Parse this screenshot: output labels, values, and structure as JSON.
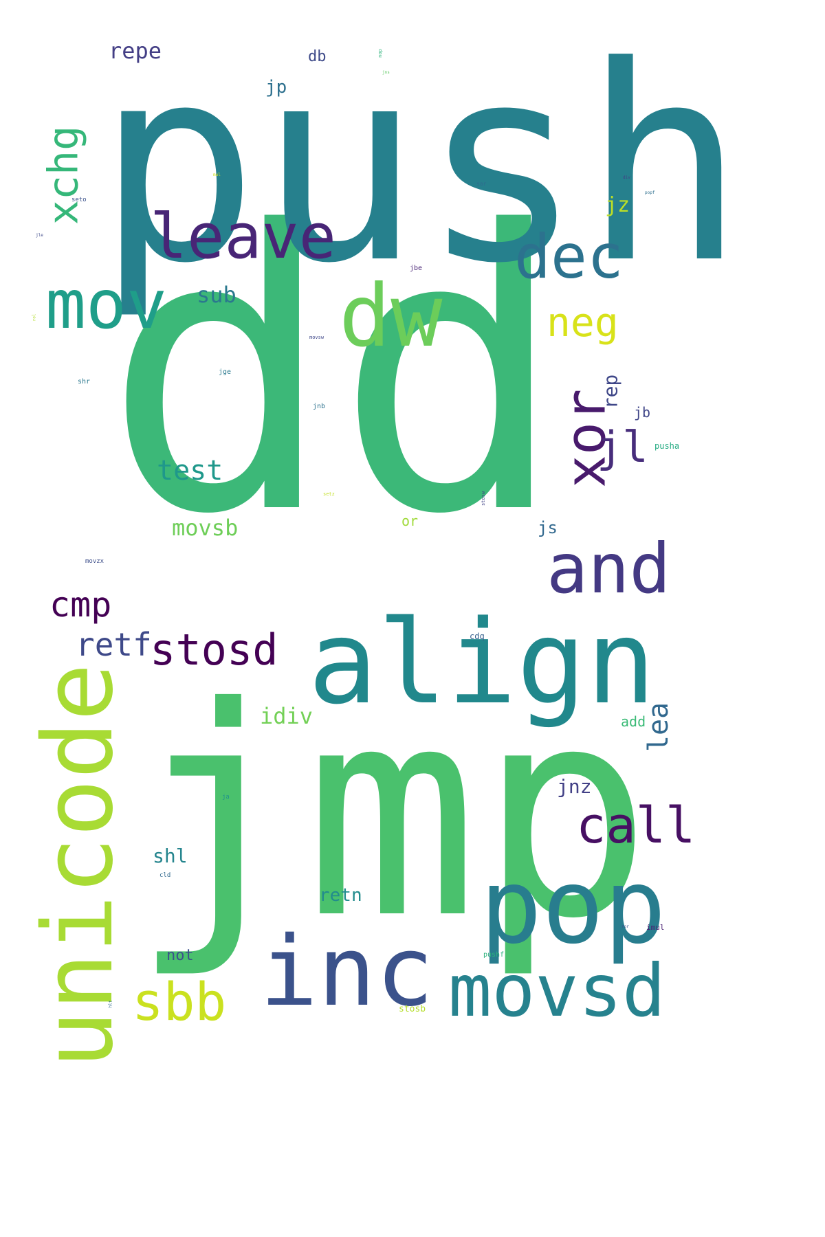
{
  "words": [
    {
      "text": "dd",
      "color": "#3cb878",
      "weight": 1.0,
      "orientation": "horizontal"
    },
    {
      "text": "push",
      "color": "#26808d",
      "weight": 0.62,
      "orientation": "horizontal"
    },
    {
      "text": "jmp",
      "color": "#4ac16d",
      "weight": 0.55,
      "orientation": "horizontal"
    },
    {
      "text": "align",
      "color": "#21888c",
      "weight": 0.3,
      "orientation": "horizontal"
    },
    {
      "text": "unicode",
      "color": "#a8db34",
      "weight": 0.28,
      "orientation": "vertical"
    },
    {
      "text": "pop",
      "color": "#287d8e",
      "weight": 0.25,
      "orientation": "horizontal"
    },
    {
      "text": "inc",
      "color": "#3b528b",
      "weight": 0.24,
      "orientation": "horizontal"
    },
    {
      "text": "dw",
      "color": "#6ccd5a",
      "weight": 0.22,
      "orientation": "horizontal"
    },
    {
      "text": "movsd",
      "color": "#26828e",
      "weight": 0.19,
      "orientation": "horizontal"
    },
    {
      "text": "mov",
      "color": "#1f9e89",
      "weight": 0.19,
      "orientation": "horizontal"
    },
    {
      "text": "and",
      "color": "#443983",
      "weight": 0.19,
      "orientation": "horizontal"
    },
    {
      "text": "leave",
      "color": "#482576",
      "weight": 0.16,
      "orientation": "horizontal"
    },
    {
      "text": "dec",
      "color": "#2c728e",
      "weight": 0.15,
      "orientation": "horizontal"
    },
    {
      "text": "xor",
      "color": "#481a6c",
      "weight": 0.14,
      "orientation": "vertical"
    },
    {
      "text": "sbb",
      "color": "#cae11f",
      "weight": 0.13,
      "orientation": "horizontal"
    },
    {
      "text": "call",
      "color": "#471063",
      "weight": 0.12,
      "orientation": "horizontal"
    },
    {
      "text": "stosd",
      "color": "#440154",
      "weight": 0.1,
      "orientation": "horizontal"
    },
    {
      "text": "neg",
      "color": "#d8e219",
      "weight": 0.1,
      "orientation": "horizontal"
    },
    {
      "text": "xchg",
      "color": "#35b779",
      "weight": 0.1,
      "orientation": "vertical"
    },
    {
      "text": "jl",
      "color": "#472d7b",
      "weight": 0.1,
      "orientation": "horizontal"
    },
    {
      "text": "cmp",
      "color": "#440154",
      "weight": 0.08,
      "orientation": "horizontal"
    },
    {
      "text": "retf",
      "color": "#3e4989",
      "weight": 0.07,
      "orientation": "horizontal"
    },
    {
      "text": "test",
      "color": "#1f988b",
      "weight": 0.06,
      "orientation": "horizontal"
    },
    {
      "text": "lea",
      "color": "#31688e",
      "weight": 0.06,
      "orientation": "vertical"
    },
    {
      "text": "movsb",
      "color": "#6ece58",
      "weight": 0.05,
      "orientation": "horizontal"
    },
    {
      "text": "sub",
      "color": "#2a788e",
      "weight": 0.05,
      "orientation": "horizontal"
    },
    {
      "text": "repe",
      "color": "#433e85",
      "weight": 0.045,
      "orientation": "horizontal"
    },
    {
      "text": "idiv",
      "color": "#73d056",
      "weight": 0.045,
      "orientation": "horizontal"
    },
    {
      "text": "shl",
      "color": "#25858e",
      "weight": 0.04,
      "orientation": "horizontal"
    },
    {
      "text": "jz",
      "color": "#bddf26",
      "weight": 0.04,
      "orientation": "horizontal"
    },
    {
      "text": "rep",
      "color": "#3f4788",
      "weight": 0.04,
      "orientation": "vertical"
    },
    {
      "text": "jnz",
      "color": "#424086",
      "weight": 0.04,
      "orientation": "horizontal"
    },
    {
      "text": "retn",
      "color": "#228c8d",
      "weight": 0.035,
      "orientation": "horizontal"
    },
    {
      "text": "jp",
      "color": "#2d708e",
      "weight": 0.035,
      "orientation": "horizontal"
    },
    {
      "text": "js",
      "color": "#31688e",
      "weight": 0.03,
      "orientation": "horizontal"
    },
    {
      "text": "not",
      "color": "#3b528b",
      "weight": 0.03,
      "orientation": "horizontal"
    },
    {
      "text": "db",
      "color": "#3e4a89",
      "weight": 0.03,
      "orientation": "horizontal"
    },
    {
      "text": "jb",
      "color": "#404688",
      "weight": 0.025,
      "orientation": "horizontal"
    },
    {
      "text": "add",
      "color": "#3aba76",
      "weight": 0.025,
      "orientation": "horizontal"
    },
    {
      "text": "or",
      "color": "#a0da39",
      "weight": 0.025,
      "orientation": "horizontal"
    },
    {
      "text": "cdq",
      "color": "#355f8d",
      "weight": 0.015,
      "orientation": "horizontal"
    },
    {
      "text": "pusha",
      "color": "#25ab82",
      "weight": 0.015,
      "orientation": "horizontal"
    },
    {
      "text": "stosb",
      "color": "#b5de2b",
      "weight": 0.015,
      "orientation": "horizontal"
    },
    {
      "text": "imul",
      "color": "#482173",
      "weight": 0.012,
      "orientation": "horizontal"
    },
    {
      "text": "jnb",
      "color": "#2c728e",
      "weight": 0.012,
      "orientation": "horizontal"
    },
    {
      "text": "jge",
      "color": "#29798e",
      "weight": 0.012,
      "orientation": "horizontal"
    },
    {
      "text": "shr",
      "color": "#2a788e",
      "weight": 0.012,
      "orientation": "horizontal"
    },
    {
      "text": "movzx",
      "color": "#3d4e8a",
      "weight": 0.012,
      "orientation": "horizontal"
    },
    {
      "text": "pushf",
      "color": "#2db27d",
      "weight": 0.012,
      "orientation": "horizontal"
    },
    {
      "text": "cld",
      "color": "#30698e",
      "weight": 0.011,
      "orientation": "horizontal"
    },
    {
      "text": "jbe",
      "color": "#482475",
      "weight": 0.011,
      "orientation": "horizontal"
    },
    {
      "text": "ja",
      "color": "#20928c",
      "weight": 0.011,
      "orientation": "horizontal"
    },
    {
      "text": "seto",
      "color": "#3b528b",
      "weight": 0.01,
      "orientation": "horizontal"
    },
    {
      "text": "sar",
      "color": "#2f6c8e",
      "weight": 0.01,
      "orientation": "horizontal"
    },
    {
      "text": "movsw",
      "color": "#3f4889",
      "weight": 0.009,
      "orientation": "horizontal"
    },
    {
      "text": "setz",
      "color": "#c2df23",
      "weight": 0.009,
      "orientation": "horizontal"
    },
    {
      "text": "stosw",
      "color": "#414487",
      "weight": 0.009,
      "orientation": "vertical"
    },
    {
      "text": "nop",
      "color": "#2fb47c",
      "weight": 0.009,
      "orientation": "vertical"
    },
    {
      "text": "jns",
      "color": "#5ec962",
      "weight": 0.008,
      "orientation": "horizontal"
    },
    {
      "text": "div",
      "color": "#424186",
      "weight": 0.008,
      "orientation": "horizontal"
    },
    {
      "text": "popf",
      "color": "#2e6f8e",
      "weight": 0.008,
      "orientation": "horizontal"
    },
    {
      "text": "mul",
      "color": "#d0e11c",
      "weight": 0.008,
      "orientation": "horizontal"
    },
    {
      "text": "jle",
      "color": "#3e4989",
      "weight": 0.008,
      "orientation": "horizontal"
    },
    {
      "text": "rol",
      "color": "#b2dd2d",
      "weight": 0.008,
      "orientation": "vertical"
    },
    {
      "text": "ror",
      "color": "#3b528b",
      "weight": 0.008,
      "orientation": "horizontal"
    },
    {
      "text": "hlt",
      "color": "#2f6b8e",
      "weight": 0.008,
      "orientation": "vertical"
    }
  ]
}
